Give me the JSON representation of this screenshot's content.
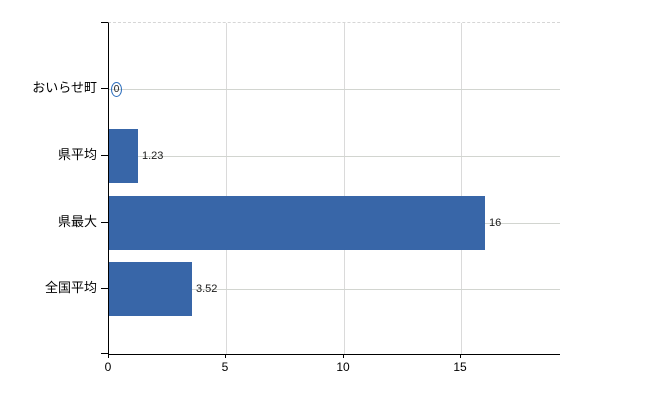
{
  "chart_data": {
    "type": "bar",
    "orientation": "horizontal",
    "categories": [
      "おいらせ町",
      "県平均",
      "県最大",
      "全国平均"
    ],
    "values": [
      0,
      1.23,
      16,
      3.52
    ],
    "value_labels": [
      "0",
      "1.23",
      "16",
      "3.52"
    ],
    "x_tick_values": [
      0,
      5,
      10,
      15
    ],
    "x_tick_labels": [
      "0",
      "5",
      "10",
      "15"
    ],
    "xlim": [
      0,
      19.2
    ],
    "grid": true,
    "legend": "none",
    "bar_color": "#3866a8",
    "zero_marker_color": "#2e6fbe",
    "gridline_color": "#d2d5d0",
    "axis_color": "#000000"
  }
}
